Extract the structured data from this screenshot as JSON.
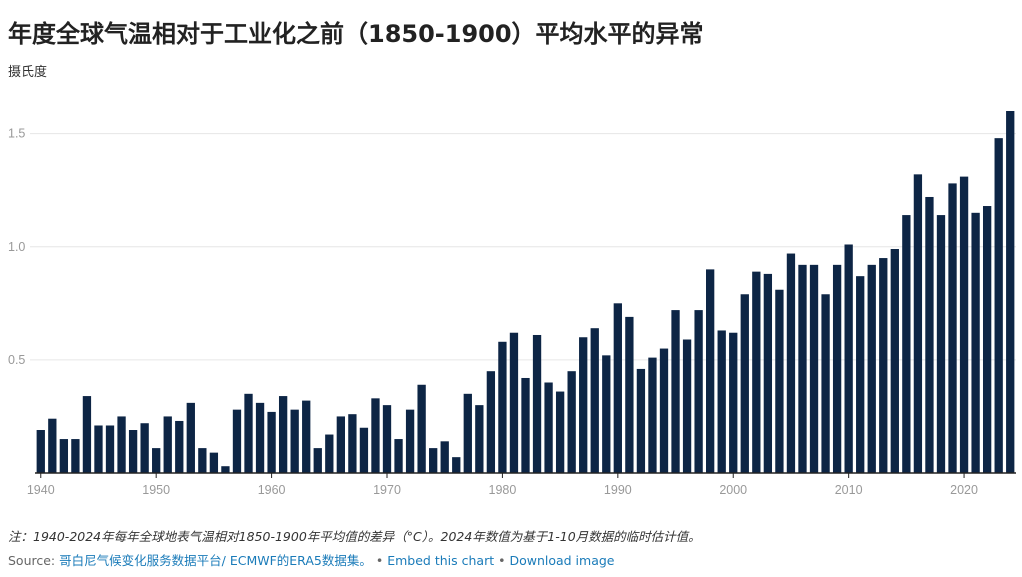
{
  "title": "年度全球气温相对于工业化之前（1850-1900）平均水平的异常",
  "unit_label": "摄氏度",
  "note": "注：1940-2024年每年全球地表气温相对1850-1900年平均值的差异（°C）。2024年数值为基于1-10月数据的临时估计值。",
  "source": {
    "prefix": "Source:",
    "source_link": "哥白尼气候变化服务数据平台/ ECMWF的ERA5数据集。",
    "separator": "•",
    "embed_label": "Embed this chart",
    "download_label": "Download image"
  },
  "colors": {
    "bar": "#0d2545",
    "grid": "#e6e6e6",
    "axis": "#222222",
    "link": "#1a7bb9"
  },
  "chart_data": {
    "type": "bar",
    "title": "年度全球气温相对于工业化之前（1850-1900）平均水平的异常",
    "ylabel": "摄氏度",
    "xlabel": "",
    "ylim": [
      0,
      1.6
    ],
    "grid": true,
    "y_ticks": [
      "0.5",
      "1.0",
      "1.5"
    ],
    "x_ticks": [
      "1940",
      "1950",
      "1960",
      "1970",
      "1980",
      "1990",
      "2000",
      "2010",
      "2020"
    ],
    "categories": [
      1940,
      1941,
      1942,
      1943,
      1944,
      1945,
      1946,
      1947,
      1948,
      1949,
      1950,
      1951,
      1952,
      1953,
      1954,
      1955,
      1956,
      1957,
      1958,
      1959,
      1960,
      1961,
      1962,
      1963,
      1964,
      1965,
      1966,
      1967,
      1968,
      1969,
      1970,
      1971,
      1972,
      1973,
      1974,
      1975,
      1976,
      1977,
      1978,
      1979,
      1980,
      1981,
      1982,
      1983,
      1984,
      1985,
      1986,
      1987,
      1988,
      1989,
      1990,
      1991,
      1992,
      1993,
      1994,
      1995,
      1996,
      1997,
      1998,
      1999,
      2000,
      2001,
      2002,
      2003,
      2004,
      2005,
      2006,
      2007,
      2008,
      2009,
      2010,
      2011,
      2012,
      2013,
      2014,
      2015,
      2016,
      2017,
      2018,
      2019,
      2020,
      2021,
      2022,
      2023,
      2024
    ],
    "values": [
      0.19,
      0.24,
      0.15,
      0.15,
      0.34,
      0.21,
      0.21,
      0.25,
      0.19,
      0.22,
      0.11,
      0.25,
      0.23,
      0.31,
      0.11,
      0.09,
      0.03,
      0.28,
      0.35,
      0.31,
      0.27,
      0.34,
      0.28,
      0.32,
      0.11,
      0.17,
      0.25,
      0.26,
      0.2,
      0.33,
      0.3,
      0.15,
      0.28,
      0.39,
      0.11,
      0.14,
      0.07,
      0.35,
      0.3,
      0.45,
      0.58,
      0.62,
      0.42,
      0.61,
      0.4,
      0.36,
      0.45,
      0.6,
      0.64,
      0.52,
      0.75,
      0.69,
      0.46,
      0.51,
      0.55,
      0.72,
      0.59,
      0.72,
      0.9,
      0.63,
      0.62,
      0.79,
      0.89,
      0.88,
      0.81,
      0.97,
      0.92,
      0.92,
      0.79,
      0.92,
      1.01,
      0.87,
      0.92,
      0.95,
      0.99,
      1.14,
      1.32,
      1.22,
      1.14,
      1.28,
      1.31,
      1.15,
      1.18,
      1.48,
      1.6
    ]
  }
}
